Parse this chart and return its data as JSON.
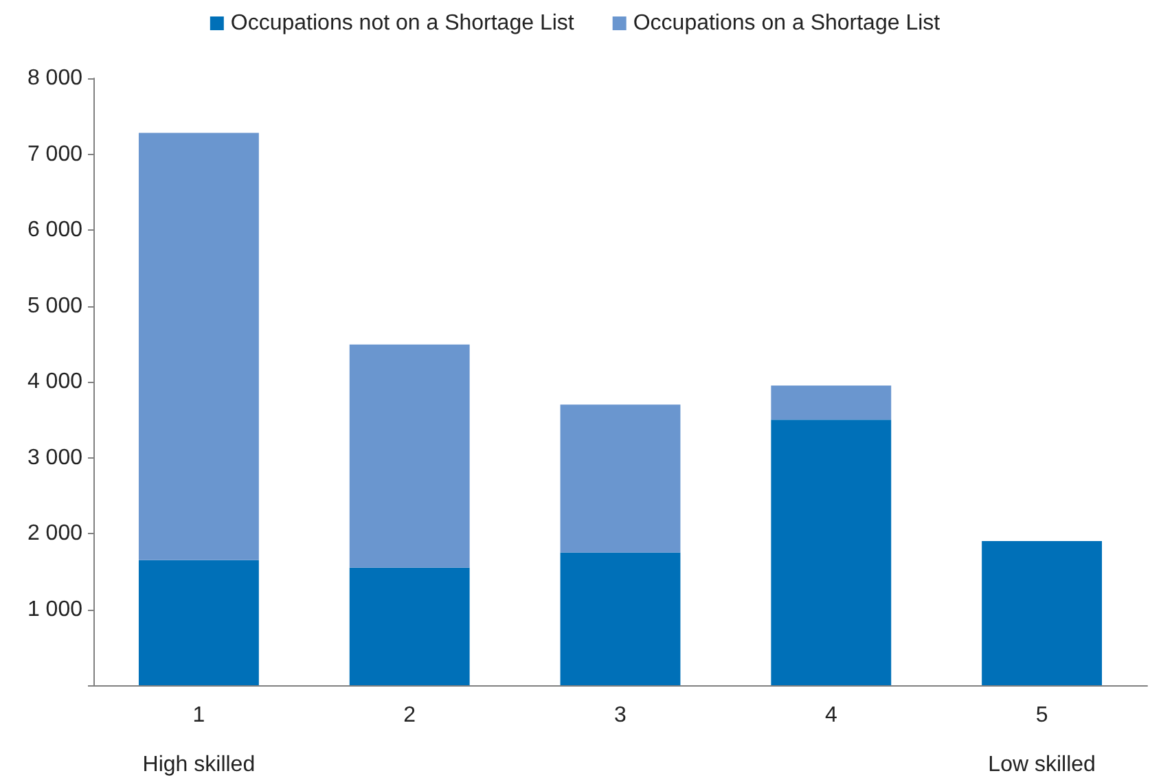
{
  "chart_data": {
    "type": "bar",
    "stacked": true,
    "categories": [
      "1",
      "2",
      "3",
      "4",
      "5"
    ],
    "series": [
      {
        "name": "Occupations not on a Shortage List",
        "color": "#0070b8",
        "values": [
          1650,
          1550,
          1750,
          3500,
          1900
        ]
      },
      {
        "name": "Occupations on a Shortage List",
        "color": "#6a96cf",
        "values": [
          5630,
          2940,
          1950,
          450,
          0
        ]
      }
    ],
    "ylim": [
      0,
      8000
    ],
    "yticks": [
      {
        "value": 0,
        "label": null
      },
      {
        "value": 1000,
        "label": "1 000"
      },
      {
        "value": 2000,
        "label": "2 000"
      },
      {
        "value": 3000,
        "label": "3 000"
      },
      {
        "value": 4000,
        "label": "4 000"
      },
      {
        "value": 5000,
        "label": "5 000"
      },
      {
        "value": 6000,
        "label": "6 000"
      },
      {
        "value": 7000,
        "label": "7 000"
      },
      {
        "value": 8000,
        "label": "8 000"
      }
    ],
    "annotations": [
      "High skilled",
      "Low skilled"
    ],
    "grid": false,
    "legend": "top"
  }
}
